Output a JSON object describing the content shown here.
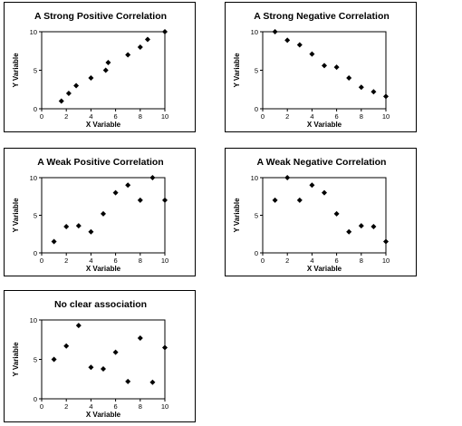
{
  "chart_data": [
    {
      "type": "scatter",
      "title": "A Strong Positive Correlation",
      "xlabel": "X Variable",
      "ylabel": "Y Variable",
      "xlim": [
        0,
        10
      ],
      "ylim": [
        0,
        10
      ],
      "xticks": [
        0,
        2,
        4,
        6,
        8,
        10
      ],
      "yticks": [
        0,
        5,
        10
      ],
      "grid": false,
      "points": [
        {
          "x": 1.6,
          "y": 1.0
        },
        {
          "x": 2.2,
          "y": 2.0
        },
        {
          "x": 2.8,
          "y": 3.0
        },
        {
          "x": 4.0,
          "y": 4.0
        },
        {
          "x": 5.2,
          "y": 5.0
        },
        {
          "x": 5.4,
          "y": 6.0
        },
        {
          "x": 7.0,
          "y": 7.0
        },
        {
          "x": 8.0,
          "y": 8.0
        },
        {
          "x": 8.6,
          "y": 9.0
        },
        {
          "x": 10.0,
          "y": 10.0
        }
      ]
    },
    {
      "type": "scatter",
      "title": "A Strong Negative Correlation",
      "xlabel": "X Variable",
      "ylabel": "Y Variable",
      "xlim": [
        0,
        10
      ],
      "ylim": [
        0,
        10
      ],
      "xticks": [
        0,
        2,
        4,
        6,
        8,
        10
      ],
      "yticks": [
        0,
        5,
        10
      ],
      "grid": false,
      "points": [
        {
          "x": 1,
          "y": 10.0
        },
        {
          "x": 2,
          "y": 8.9
        },
        {
          "x": 3,
          "y": 8.3
        },
        {
          "x": 4,
          "y": 7.1
        },
        {
          "x": 5,
          "y": 5.6
        },
        {
          "x": 6,
          "y": 5.4
        },
        {
          "x": 7,
          "y": 4.0
        },
        {
          "x": 8,
          "y": 2.8
        },
        {
          "x": 9,
          "y": 2.2
        },
        {
          "x": 10,
          "y": 1.6
        }
      ]
    },
    {
      "type": "scatter",
      "title": "A Weak Positive Correlation",
      "xlabel": "X Variable",
      "ylabel": "Y Variable",
      "xlim": [
        0,
        10
      ],
      "ylim": [
        0,
        10
      ],
      "xticks": [
        0,
        2,
        4,
        6,
        8,
        10
      ],
      "yticks": [
        0,
        5,
        10
      ],
      "grid": false,
      "points": [
        {
          "x": 1,
          "y": 1.5
        },
        {
          "x": 2,
          "y": 3.5
        },
        {
          "x": 3,
          "y": 3.6
        },
        {
          "x": 4,
          "y": 2.8
        },
        {
          "x": 5,
          "y": 5.2
        },
        {
          "x": 6,
          "y": 8.0
        },
        {
          "x": 7,
          "y": 9.0
        },
        {
          "x": 8,
          "y": 7.0
        },
        {
          "x": 9,
          "y": 10.0
        },
        {
          "x": 10,
          "y": 7.0
        }
      ]
    },
    {
      "type": "scatter",
      "title": "A Weak Negative Correlation",
      "xlabel": "X Variable",
      "ylabel": "Y Variable",
      "xlim": [
        0,
        10
      ],
      "ylim": [
        0,
        10
      ],
      "xticks": [
        0,
        2,
        4,
        6,
        8,
        10
      ],
      "yticks": [
        0,
        5,
        10
      ],
      "grid": false,
      "points": [
        {
          "x": 1,
          "y": 7.0
        },
        {
          "x": 2,
          "y": 10.0
        },
        {
          "x": 3,
          "y": 7.0
        },
        {
          "x": 4,
          "y": 9.0
        },
        {
          "x": 5,
          "y": 8.0
        },
        {
          "x": 6,
          "y": 5.2
        },
        {
          "x": 7,
          "y": 2.8
        },
        {
          "x": 8,
          "y": 3.6
        },
        {
          "x": 9,
          "y": 3.5
        },
        {
          "x": 10,
          "y": 1.5
        }
      ]
    },
    {
      "type": "scatter",
      "title": "No clear association",
      "xlabel": "X Variable",
      "ylabel": "Y Variable",
      "xlim": [
        0,
        10
      ],
      "ylim": [
        0,
        10
      ],
      "xticks": [
        0,
        2,
        4,
        6,
        8,
        10
      ],
      "yticks": [
        0,
        5,
        10
      ],
      "grid": false,
      "points": [
        {
          "x": 1,
          "y": 5.0
        },
        {
          "x": 2,
          "y": 6.7
        },
        {
          "x": 3,
          "y": 9.3
        },
        {
          "x": 4,
          "y": 4.0
        },
        {
          "x": 5,
          "y": 3.8
        },
        {
          "x": 6,
          "y": 5.9
        },
        {
          "x": 7,
          "y": 2.2
        },
        {
          "x": 8,
          "y": 7.7
        },
        {
          "x": 9,
          "y": 2.1
        },
        {
          "x": 10,
          "y": 6.5
        }
      ]
    }
  ]
}
